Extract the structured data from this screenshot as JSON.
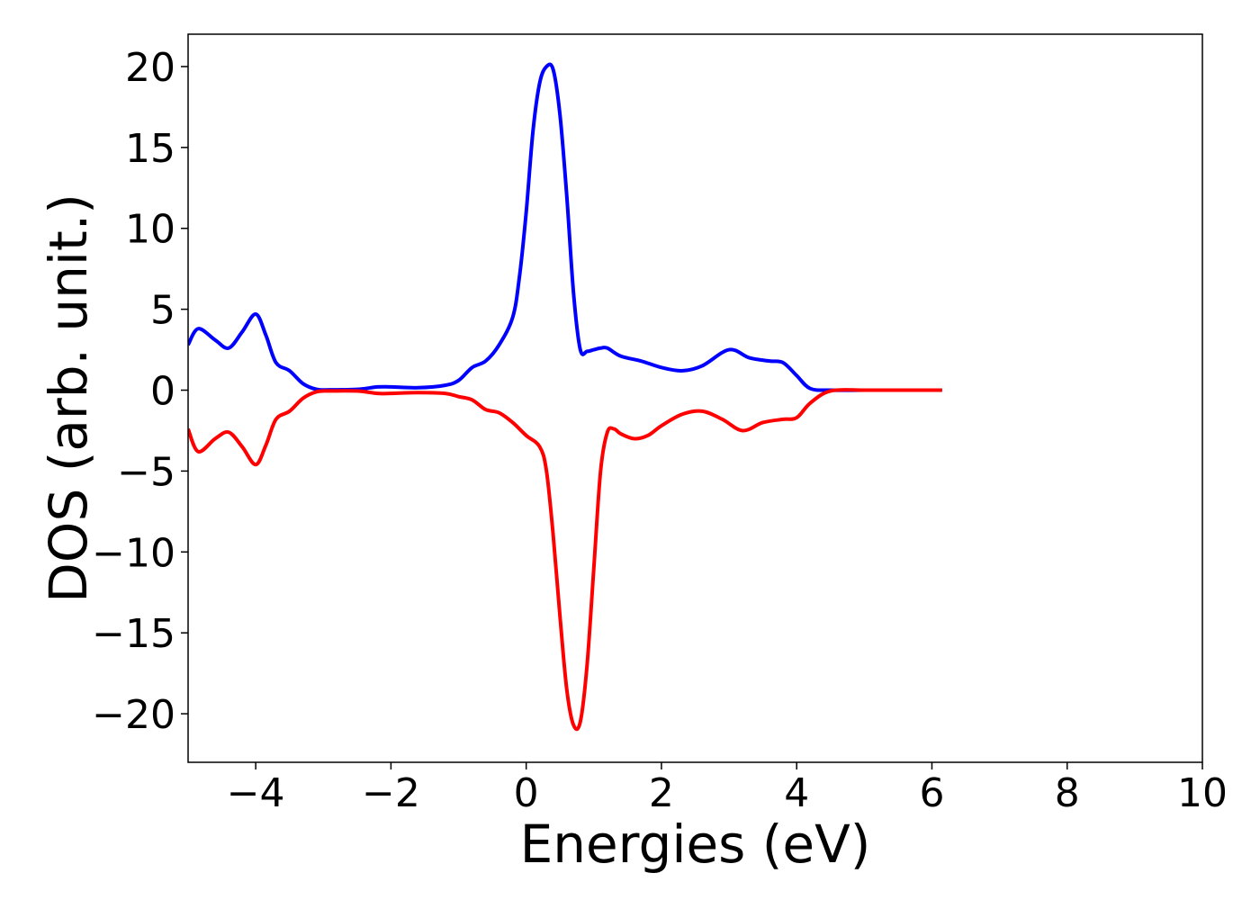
{
  "chart_data": {
    "type": "line",
    "title": "",
    "xlabel": "Energies (eV)",
    "ylabel": "DOS (arb. unit.)",
    "xlim": [
      -5,
      10
    ],
    "ylim": [
      -23,
      22
    ],
    "grid": false,
    "x_ticks": [
      -4,
      -2,
      0,
      2,
      4,
      6,
      8,
      10
    ],
    "x_tick_labels": [
      "−4",
      "−2",
      "0",
      "2",
      "4",
      "6",
      "8",
      "10"
    ],
    "y_ticks": [
      -20,
      -15,
      -10,
      -5,
      0,
      5,
      10,
      15,
      20
    ],
    "y_tick_labels": [
      "−20",
      "−15",
      "−10",
      "−5",
      "0",
      "5",
      "10",
      "15",
      "20"
    ],
    "series": [
      {
        "color": "#0000ff",
        "x": [
          -5.0,
          -4.85,
          -4.6,
          -4.4,
          -4.2,
          -4.0,
          -3.85,
          -3.7,
          -3.5,
          -3.3,
          -3.1,
          -2.9,
          -2.5,
          -2.2,
          -2.0,
          -1.6,
          -1.2,
          -1.0,
          -0.8,
          -0.6,
          -0.4,
          -0.2,
          -0.1,
          0.0,
          0.1,
          0.2,
          0.3,
          0.4,
          0.5,
          0.6,
          0.7,
          0.8,
          0.9,
          1.0,
          1.1,
          1.2,
          1.4,
          1.7,
          2.0,
          2.3,
          2.6,
          3.0,
          3.3,
          3.6,
          3.8,
          4.0,
          4.2,
          4.5,
          5.0,
          5.5,
          6.15
        ],
        "y": [
          2.8,
          3.8,
          3.1,
          2.6,
          3.6,
          4.7,
          3.4,
          1.7,
          1.2,
          0.4,
          0.05,
          0.02,
          0.05,
          0.2,
          0.2,
          0.15,
          0.3,
          0.6,
          1.4,
          1.8,
          2.8,
          4.5,
          7.0,
          11.0,
          16.0,
          19.0,
          20.0,
          19.8,
          17.0,
          12.0,
          6.0,
          2.5,
          2.4,
          2.5,
          2.6,
          2.6,
          2.1,
          1.8,
          1.4,
          1.2,
          1.5,
          2.5,
          2.0,
          1.8,
          1.7,
          0.9,
          0.1,
          0.0,
          0.0,
          0.0,
          0.0
        ]
      },
      {
        "color": "#ff0000",
        "x": [
          -5.0,
          -4.85,
          -4.6,
          -4.4,
          -4.2,
          -4.0,
          -3.85,
          -3.7,
          -3.5,
          -3.3,
          -3.1,
          -2.9,
          -2.5,
          -2.2,
          -2.0,
          -1.6,
          -1.2,
          -1.0,
          -0.8,
          -0.6,
          -0.4,
          -0.2,
          0.0,
          0.2,
          0.3,
          0.4,
          0.5,
          0.6,
          0.7,
          0.8,
          0.9,
          1.0,
          1.1,
          1.2,
          1.3,
          1.4,
          1.6,
          1.8,
          2.0,
          2.3,
          2.6,
          2.9,
          3.2,
          3.5,
          3.8,
          4.0,
          4.2,
          4.5,
          5.0,
          5.5,
          6.15
        ],
        "y": [
          -2.4,
          -3.8,
          -3.0,
          -2.6,
          -3.5,
          -4.6,
          -3.4,
          -1.8,
          -1.3,
          -0.5,
          -0.1,
          -0.05,
          -0.05,
          -0.2,
          -0.2,
          -0.15,
          -0.2,
          -0.4,
          -0.6,
          -1.2,
          -1.4,
          -2.0,
          -2.8,
          -3.5,
          -5.0,
          -9.0,
          -14.0,
          -18.5,
          -20.7,
          -20.5,
          -17.0,
          -11.0,
          -5.0,
          -2.6,
          -2.4,
          -2.7,
          -3.0,
          -2.8,
          -2.2,
          -1.5,
          -1.3,
          -1.8,
          -2.5,
          -2.0,
          -1.8,
          -1.7,
          -0.8,
          -0.05,
          0.0,
          0.0,
          0.0
        ]
      }
    ]
  }
}
